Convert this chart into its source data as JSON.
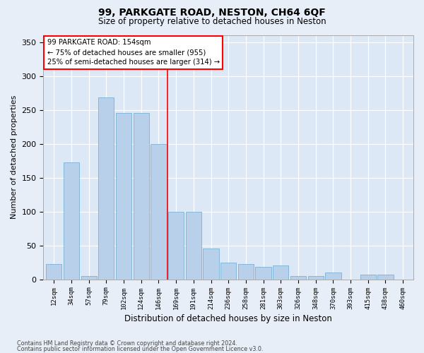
{
  "title1": "99, PARKGATE ROAD, NESTON, CH64 6QF",
  "title2": "Size of property relative to detached houses in Neston",
  "xlabel": "Distribution of detached houses by size in Neston",
  "ylabel": "Number of detached properties",
  "categories": [
    "12sqm",
    "34sqm",
    "57sqm",
    "79sqm",
    "102sqm",
    "124sqm",
    "146sqm",
    "169sqm",
    "191sqm",
    "214sqm",
    "236sqm",
    "258sqm",
    "281sqm",
    "303sqm",
    "326sqm",
    "348sqm",
    "370sqm",
    "393sqm",
    "415sqm",
    "438sqm",
    "460sqm"
  ],
  "values": [
    22,
    172,
    5,
    268,
    245,
    245,
    200,
    100,
    100,
    45,
    25,
    22,
    18,
    20,
    5,
    5,
    10,
    0,
    7,
    7,
    0
  ],
  "bar_color": "#b8d0ea",
  "bar_edge_color": "#7aafd4",
  "background_color": "#dce8f5",
  "grid_color": "#ffffff",
  "red_line_x": 6.5,
  "annotation": {
    "line1": "99 PARKGATE ROAD: 154sqm",
    "line2": "← 75% of detached houses are smaller (955)",
    "line3": "25% of semi-detached houses are larger (314) →"
  },
  "footnote1": "Contains HM Land Registry data © Crown copyright and database right 2024.",
  "footnote2": "Contains public sector information licensed under the Open Government Licence v3.0.",
  "ylim": [
    0,
    360
  ],
  "yticks": [
    0,
    50,
    100,
    150,
    200,
    250,
    300,
    350
  ],
  "fig_width": 6.0,
  "fig_height": 5.0,
  "fig_bg": "#e8eef8",
  "title1_fontsize": 10,
  "title2_fontsize": 8.5
}
